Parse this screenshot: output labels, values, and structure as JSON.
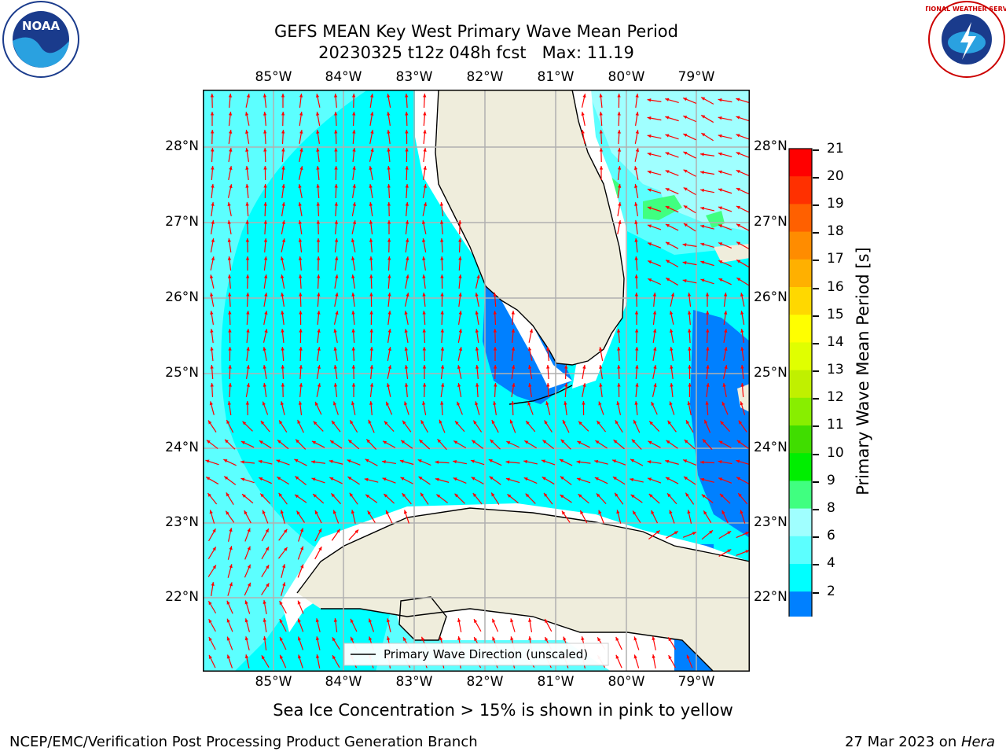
{
  "title": {
    "line1": "GEFS MEAN Key West Primary Wave Mean Period",
    "line2": "20230325 t12z 048h fcst   Max: 11.19"
  },
  "map": {
    "lon_labels": [
      "85°W",
      "84°W",
      "83°W",
      "82°W",
      "81°W",
      "80°W",
      "79°W"
    ],
    "lat_labels": [
      "28°N",
      "27°N",
      "26°N",
      "25°N",
      "24°N",
      "23°N",
      "22°N"
    ],
    "legend_text": "Primary Wave Direction (unscaled)",
    "colors": {
      "ocean_main": "#00ffff",
      "ocean_light": "#5cffff",
      "ocean_pale": "#a0ffff",
      "ocean_blue": "#0080ff",
      "ocean_dark": "#0000ff",
      "land": "#efeddc",
      "green": "#40ff80",
      "arrow": "#ff0000",
      "grid": "#b0b0b0"
    }
  },
  "colorbar": {
    "label": "Primary Wave Mean Period [s]",
    "left_ticks": [
      "21",
      "20",
      "19",
      "18",
      "17",
      "16",
      "15",
      "14",
      "13",
      "12",
      "11",
      "10",
      "9",
      "8",
      "6",
      "4",
      "2"
    ],
    "colors": [
      "#ff0000",
      "#ff3000",
      "#ff6000",
      "#ff8c00",
      "#ffb000",
      "#ffd800",
      "#ffff00",
      "#e0ff00",
      "#c0f000",
      "#88ee00",
      "#40dd00",
      "#00ee00",
      "#40ff80",
      "#a0ffff",
      "#5cffff",
      "#00ffff",
      "#0080ff",
      "#0000ff"
    ]
  },
  "footer": {
    "sea_ice_note": "Sea Ice Concentration > 15% is shown in pink to yellow",
    "left": "NCEP/EMC/Verification Post Processing Product Generation Branch",
    "right_date": "27 Mar 2023 on ",
    "right_host": "Hera"
  },
  "logos": {
    "noaa_text": "NOAA",
    "nws_text": "NATIONAL WEATHER SERVICE"
  }
}
